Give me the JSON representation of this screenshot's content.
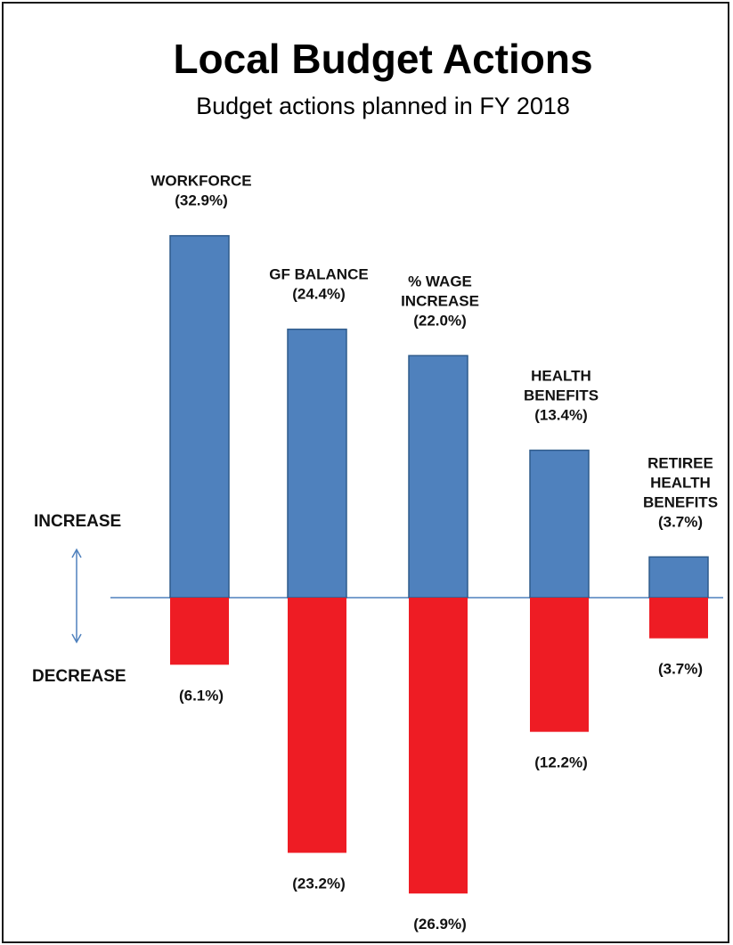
{
  "chart_data": {
    "type": "bar",
    "title": "Local Budget Actions",
    "subtitle": "Budget actions planned in FY 2018",
    "increase_label": "INCREASE",
    "decrease_label": "DECREASE",
    "categories": [
      [
        "WORKFORCE"
      ],
      [
        "GF BALANCE"
      ],
      [
        "% WAGE",
        "INCREASE"
      ],
      [
        "HEALTH",
        "BENEFITS"
      ],
      [
        "RETIREE",
        "HEALTH",
        "BENEFITS"
      ]
    ],
    "series": [
      {
        "values": [
          32.9,
          24.4,
          22.0,
          13.4,
          3.7
        ],
        "labels": [
          "(32.9%)",
          "(24.4%)",
          "(22.0%)",
          "(13.4%)",
          "(3.7%)"
        ],
        "color": "#4f81bd"
      },
      {
        "values": [
          6.1,
          23.2,
          26.9,
          12.2,
          3.7
        ],
        "labels": [
          "(6.1%)",
          "(23.2%)",
          "(26.9%)",
          "(12.2%)",
          "(3.7%)"
        ],
        "color": "#ee1c24"
      }
    ],
    "axis_line_color": "#4f81bd"
  }
}
